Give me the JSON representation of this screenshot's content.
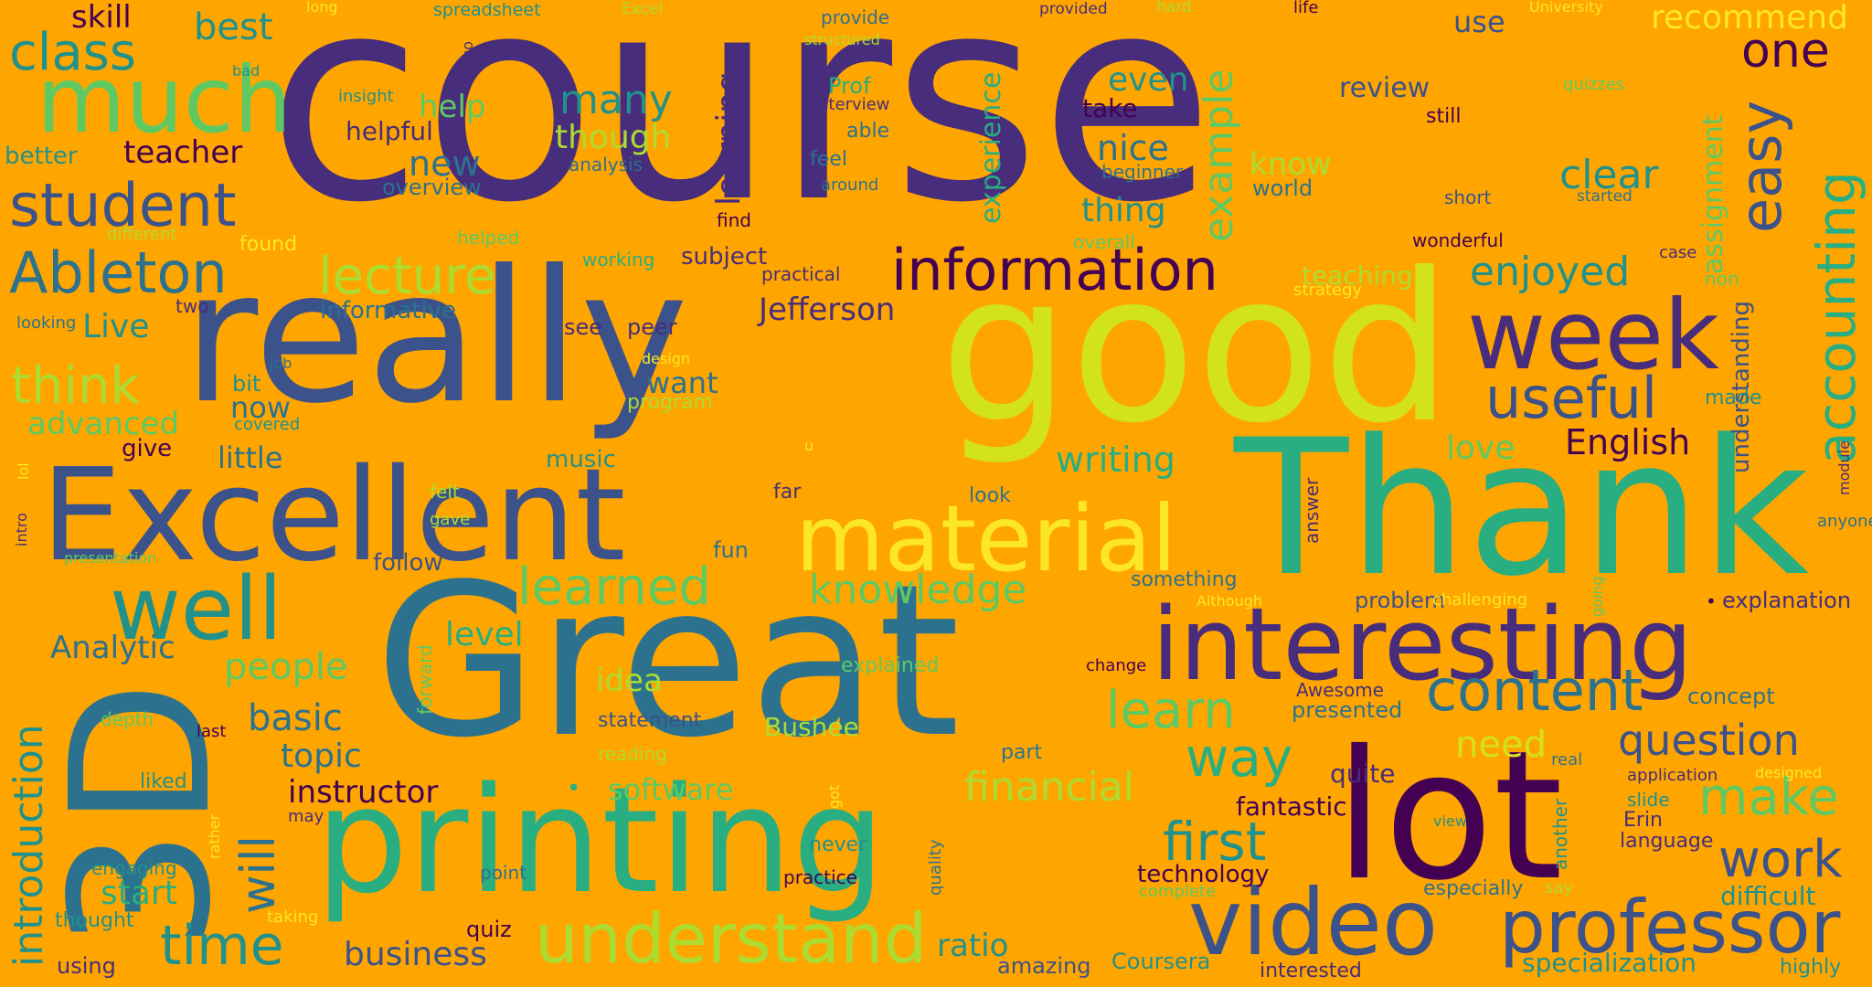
{
  "background": "#FFA500",
  "palette": {
    "indigo": "#472D7B",
    "deep_purple": "#440154",
    "blue": "#3B528B",
    "teal_blue": "#2C728E",
    "teal": "#21918C",
    "green_teal": "#28AE80",
    "green": "#5EC962",
    "lime": "#ADDC30",
    "yellow_green": "#D2E21B",
    "yellow": "#FDE725"
  },
  "words": {
    "course": {
      "text": "course",
      "color": "#472D7B"
    },
    "good": {
      "text": "good",
      "color": "#D2E21B"
    },
    "great": {
      "text": "Great",
      "color": "#2C728E"
    },
    "really": {
      "text": "really",
      "color": "#3B528B"
    },
    "thank": {
      "text": "Thank",
      "color": "#28AE80"
    },
    "printing": {
      "text": "printing",
      "color": "#28AE80"
    },
    "excellent": {
      "text": "Excellent",
      "color": "#3B528B"
    },
    "lot": {
      "text": "lot",
      "color": "#440154"
    },
    "3d": {
      "text": "3D",
      "color": "#2C728E"
    },
    "material": {
      "text": "material",
      "color": "#FDE725"
    },
    "video": {
      "text": "video",
      "color": "#3B528B"
    },
    "professor": {
      "text": "professor",
      "color": "#3B528B"
    },
    "interesting": {
      "text": "interesting",
      "color": "#472D7B"
    },
    "well": {
      "text": "well",
      "color": "#21918C"
    },
    "week": {
      "text": "week",
      "color": "#472D7B"
    },
    "much": {
      "text": "much",
      "color": "#5EC962"
    },
    "information": {
      "text": "information",
      "color": "#440154"
    },
    "understand": {
      "text": "understand",
      "color": "#ADDC30"
    },
    "content": {
      "text": "content",
      "color": "#2C728E"
    },
    "useful": {
      "text": "useful",
      "color": "#3B528B"
    },
    "student": {
      "text": "student",
      "color": "#3B528B"
    },
    "ableton": {
      "text": "Ableton",
      "color": "#2C728E"
    },
    "time": {
      "text": "time",
      "color": "#21918C"
    },
    "lecture": {
      "text": "lecture",
      "color": "#ADDC30"
    },
    "way": {
      "text": "way",
      "color": "#28AE80"
    },
    "first": {
      "text": "first",
      "color": "#21918C"
    },
    "work": {
      "text": "work",
      "color": "#3B528B"
    },
    "make": {
      "text": "make",
      "color": "#5EC962"
    },
    "question": {
      "text": "question",
      "color": "#3B528B"
    },
    "one": {
      "text": "one",
      "color": "#440154"
    },
    "learned": {
      "text": "learned",
      "color": "#5EC962"
    },
    "learn": {
      "text": "learn",
      "color": "#5EC962"
    },
    "class": {
      "text": "class",
      "color": "#21918C"
    },
    "think": {
      "text": "think",
      "color": "#ADDC30"
    },
    "financial": {
      "text": "financial",
      "color": "#ADDC30"
    },
    "knowledge": {
      "text": "knowledge",
      "color": "#5EC962"
    },
    "enjoyed": {
      "text": "enjoyed",
      "color": "#21918C"
    },
    "clear": {
      "text": "clear",
      "color": "#21918C"
    },
    "many": {
      "text": "many",
      "color": "#21918C"
    },
    "will": {
      "text": "will",
      "color": "#2C728E"
    },
    "easy": {
      "text": "easy",
      "color": "#3B528B"
    },
    "accounting": {
      "text": "accounting",
      "color": "#28AE80"
    },
    "introduction": {
      "text": "introduction",
      "color": "#21918C"
    },
    "example": {
      "text": "example",
      "color": "#5EC962"
    },
    "learning": {
      "text": "learning",
      "color": "#472D7B"
    },
    "experience": {
      "text": "experience",
      "color": "#28AE80"
    },
    "assignment": {
      "text": "assignment",
      "color": "#5EC962"
    },
    "understanding": {
      "text": "understanding",
      "color": "#3B528B"
    },
    "forward": {
      "text": "forward",
      "color": "#5EC962"
    },
    "go": {
      "text": "go",
      "color": "#472D7B"
    },
    "answer": {
      "text": "answer",
      "color": "#472D7B"
    },
    "quality": {
      "text": "quality",
      "color": "#2C728E"
    },
    "going": {
      "text": "going",
      "color": "#5EC962"
    },
    "another": {
      "text": "another",
      "color": "#21918C"
    },
    "module": {
      "text": "module",
      "color": "#472D7B"
    },
    "intro": {
      "text": "intro",
      "color": "#472D7B"
    },
    "skill": {
      "text": "skill",
      "color": "#440154"
    },
    "best": {
      "text": "best",
      "color": "#21918C"
    },
    "recommend": {
      "text": "recommend",
      "color": "#FDE725"
    },
    "use": {
      "text": "use",
      "color": "#3B528B"
    },
    "review": {
      "text": "review",
      "color": "#3B528B"
    },
    "teacher": {
      "text": "teacher",
      "color": "#440154"
    },
    "better": {
      "text": "better",
      "color": "#21918C"
    },
    "help": {
      "text": "help",
      "color": "#5EC962"
    },
    "helpful": {
      "text": "helpful",
      "color": "#472D7B"
    },
    "new": {
      "text": "new",
      "color": "#2C728E"
    },
    "though": {
      "text": "though",
      "color": "#ADDC30"
    },
    "even": {
      "text": "even",
      "color": "#21918C"
    },
    "nice": {
      "text": "nice",
      "color": "#2C728E"
    },
    "take": {
      "text": "take",
      "color": "#440154"
    },
    "know": {
      "text": "know",
      "color": "#ADDC30"
    },
    "thing": {
      "text": "thing",
      "color": "#21918C"
    },
    "overview": {
      "text": "overview",
      "color": "#2C728E"
    },
    "analysis": {
      "text": "analysis",
      "color": "#2C728E"
    },
    "live": {
      "text": "Live",
      "color": "#21918C"
    },
    "informative": {
      "text": "informative",
      "color": "#2C728E"
    },
    "two": {
      "text": "two",
      "color": "#472D7B"
    },
    "looking": {
      "text": "looking",
      "color": "#2C728E"
    },
    "bit": {
      "text": "bit",
      "color": "#21918C"
    },
    "now": {
      "text": "now",
      "color": "#2C728E"
    },
    "advanced": {
      "text": "advanced",
      "color": "#5EC962"
    },
    "covered": {
      "text": "covered",
      "color": "#21918C"
    },
    "give": {
      "text": "give",
      "color": "#440154"
    },
    "little": {
      "text": "little",
      "color": "#2C728E"
    },
    "jefferson": {
      "text": "Jefferson",
      "color": "#472D7B"
    },
    "subject": {
      "text": "subject",
      "color": "#472D7B"
    },
    "working": {
      "text": "working",
      "color": "#28AE80"
    },
    "practical": {
      "text": "practical",
      "color": "#472D7B"
    },
    "see": {
      "text": "see",
      "color": "#472D7B"
    },
    "peer": {
      "text": "peer",
      "color": "#472D7B"
    },
    "want": {
      "text": "want",
      "color": "#2C728E"
    },
    "program": {
      "text": "program",
      "color": "#ADDC30"
    },
    "design": {
      "text": "design",
      "color": "#FDE725"
    },
    "music": {
      "text": "music",
      "color": "#21918C"
    },
    "far": {
      "text": "far",
      "color": "#472D7B"
    },
    "look": {
      "text": "look",
      "color": "#2C728E"
    },
    "writing": {
      "text": "writing",
      "color": "#28AE80"
    },
    "love": {
      "text": "love",
      "color": "#5EC962"
    },
    "english": {
      "text": "English",
      "color": "#440154"
    },
    "made": {
      "text": "made",
      "color": "#21918C"
    },
    "teaching": {
      "text": "teaching",
      "color": "#ADDC30"
    },
    "strategy": {
      "text": "strategy",
      "color": "#FDE725"
    },
    "non": {
      "text": "non",
      "color": "#5EC962"
    },
    "case": {
      "text": "case",
      "color": "#472D7B"
    },
    "wonderful": {
      "text": "wonderful",
      "color": "#440154"
    },
    "short": {
      "text": "short",
      "color": "#3B528B"
    },
    "started": {
      "text": "started",
      "color": "#2C728E"
    },
    "world": {
      "text": "world",
      "color": "#2C728E"
    },
    "beginner": {
      "text": "beginner",
      "color": "#2C728E"
    },
    "overall": {
      "text": "overall",
      "color": "#5EC962"
    },
    "still": {
      "text": "still",
      "color": "#440154"
    },
    "life": {
      "text": "life",
      "color": "#440154"
    },
    "university": {
      "text": "University",
      "color": "#FDE725"
    },
    "quizzes": {
      "text": "quizzes",
      "color": "#5EC962"
    },
    "hard": {
      "text": "hard",
      "color": "#ADDC30"
    },
    "provided": {
      "text": "provided",
      "color": "#472D7B"
    },
    "provide": {
      "text": "provide",
      "color": "#2C728E"
    },
    "structured": {
      "text": "structured",
      "color": "#ADDC30"
    },
    "prof": {
      "text": "Prof",
      "color": "#28AE80"
    },
    "interview": {
      "text": "interview",
      "color": "#472D7B"
    },
    "able": {
      "text": "able",
      "color": "#2C728E"
    },
    "feel": {
      "text": "feel",
      "color": "#2C728E"
    },
    "around": {
      "text": "around",
      "color": "#2C728E"
    },
    "find": {
      "text": "find",
      "color": "#440154"
    },
    "excel": {
      "text": "Excel",
      "color": "#ADDC30"
    },
    "spreadsheet": {
      "text": "spreadsheet",
      "color": "#21918C"
    },
    "long": {
      "text": "long",
      "color": "#FDE725"
    },
    "insight": {
      "text": "insight",
      "color": "#21918C"
    },
    "bad": {
      "text": "bad",
      "color": "#21918C"
    },
    "different": {
      "text": "different",
      "color": "#ADDC30"
    },
    "found": {
      "text": "found",
      "color": "#FDE725"
    },
    "helped": {
      "text": "helped",
      "color": "#5EC962"
    },
    "felt": {
      "text": "felt",
      "color": "#ADDC30"
    },
    "gave": {
      "text": "gave",
      "color": "#ADDC30"
    },
    "follow": {
      "text": "follow",
      "color": "#3B528B"
    },
    "fun": {
      "text": "fun",
      "color": "#2C728E"
    },
    "presentation": {
      "text": "presentation",
      "color": "#5EC962"
    },
    "analytic": {
      "text": "Analytic",
      "color": "#2C728E"
    },
    "people": {
      "text": "people",
      "color": "#5EC962"
    },
    "level": {
      "text": "level",
      "color": "#28AE80"
    },
    "idea": {
      "text": "idea",
      "color": "#ADDC30"
    },
    "explained": {
      "text": "explained",
      "color": "#5EC962"
    },
    "basic": {
      "text": "basic",
      "color": "#2C728E"
    },
    "depth": {
      "text": "depth",
      "color": "#5EC962"
    },
    "last": {
      "text": "last",
      "color": "#440154"
    },
    "topic": {
      "text": "topic",
      "color": "#2C728E"
    },
    "statement": {
      "text": "statement",
      "color": "#3B528B"
    },
    "bushee": {
      "text": "Bushee",
      "color": "#ADDC30"
    },
    "reading": {
      "text": "reading",
      "color": "#ADDC30"
    },
    "part": {
      "text": "part",
      "color": "#2C728E"
    },
    "instructor": {
      "text": "instructor",
      "color": "#440154"
    },
    "software": {
      "text": "software",
      "color": "#5EC962"
    },
    "liked": {
      "text": "liked",
      "color": "#21918C"
    },
    "may": {
      "text": "may",
      "color": "#472D7B"
    },
    "start": {
      "text": "start",
      "color": "#28AE80"
    },
    "engaging": {
      "text": "engaging",
      "color": "#21918C"
    },
    "thought": {
      "text": "thought",
      "color": "#21918C"
    },
    "taking": {
      "text": "taking",
      "color": "#FDE725"
    },
    "using": {
      "text": "using",
      "color": "#472D7B"
    },
    "point": {
      "text": "point",
      "color": "#2C728E"
    },
    "quiz": {
      "text": "quiz",
      "color": "#440154"
    },
    "business": {
      "text": "business",
      "color": "#3B528B"
    },
    "ratio": {
      "text": "ratio",
      "color": "#21918C"
    },
    "amazing": {
      "text": "amazing",
      "color": "#3B528B"
    },
    "coursera": {
      "text": "Coursera",
      "color": "#21918C"
    },
    "never": {
      "text": "never",
      "color": "#21918C"
    },
    "practice": {
      "text": "practice",
      "color": "#440154"
    },
    "technology": {
      "text": "technology",
      "color": "#440154"
    },
    "complete": {
      "text": "complete",
      "color": "#5EC962"
    },
    "fantastic": {
      "text": "fantastic",
      "color": "#440154"
    },
    "quite": {
      "text": "quite",
      "color": "#472D7B"
    },
    "interested": {
      "text": "interested",
      "color": "#472D7B"
    },
    "change": {
      "text": "change",
      "color": "#440154"
    },
    "something": {
      "text": "something",
      "color": "#2C728E"
    },
    "although": {
      "text": "Although",
      "color": "#FDE725"
    },
    "awesome": {
      "text": "Awesome",
      "color": "#472D7B"
    },
    "presented": {
      "text": "presented",
      "color": "#2C728E"
    },
    "problem": {
      "text": "problem",
      "color": "#3B528B"
    },
    "challenging": {
      "text": "challenging",
      "color": "#FDE725"
    },
    "explanation": {
      "text": "explanation",
      "color": "#472D7B"
    },
    "concept": {
      "text": "concept",
      "color": "#2C728E"
    },
    "need": {
      "text": "need",
      "color": "#D2E21B"
    },
    "real": {
      "text": "real",
      "color": "#2C728E"
    },
    "application": {
      "text": "application",
      "color": "#472D7B"
    },
    "designed": {
      "text": "designed",
      "color": "#FDE725"
    },
    "slide": {
      "text": "slide",
      "color": "#21918C"
    },
    "erin": {
      "text": "Erin",
      "color": "#472D7B"
    },
    "view": {
      "text": "view",
      "color": "#21918C"
    },
    "language": {
      "text": "language",
      "color": "#472D7B"
    },
    "especially": {
      "text": "especially",
      "color": "#2C728E"
    },
    "say": {
      "text": "say",
      "color": "#ADDC30"
    },
    "difficult": {
      "text": "difficult",
      "color": "#21918C"
    },
    "specialization": {
      "text": "specialization",
      "color": "#21918C"
    },
    "highly": {
      "text": "highly",
      "color": "#21918C"
    },
    "anyone": {
      "text": "anyone",
      "color": "#2C728E"
    },
    "bullet1": {
      "text": "•",
      "color": "#28AE80"
    },
    "bullet2": {
      "text": "•",
      "color": "#440154"
    },
    "u": {
      "text": "u",
      "color": "#FDE725"
    },
    "got": {
      "text": "got",
      "color": "#FDE725"
    },
    "rather": {
      "text": "rather",
      "color": "#FDE725"
    },
    "job": {
      "text": "job",
      "color": "#2C728E"
    },
    "lol": {
      "text": "lol",
      "color": "#FDE725"
    }
  }
}
